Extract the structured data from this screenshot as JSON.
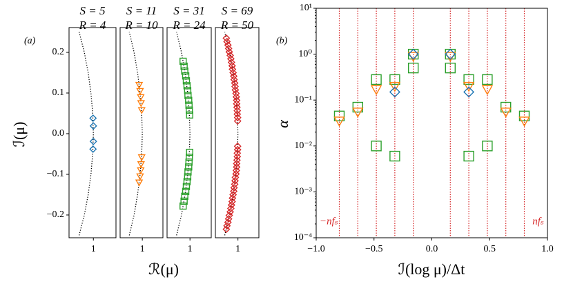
{
  "chart_data": [
    {
      "type": "scatter",
      "label": "(a)",
      "ylabel": "ℐ(μ)",
      "xlabel": "ℛ(μ)",
      "xlim": [
        0.93,
        1.065
      ],
      "xticks": [
        1
      ],
      "ylim": [
        -0.256,
        0.261
      ],
      "yticks": [
        {
          "value": -0.2,
          "label": "−0.2"
        },
        {
          "value": -0.1,
          "label": "−0.1"
        },
        {
          "value": 0,
          "label": "0.0"
        },
        {
          "value": 0.1,
          "label": "0.1"
        },
        {
          "value": 0.2,
          "label": "0.2"
        }
      ],
      "curve": {
        "color": "#000000",
        "x": [
          0.959,
          0.974,
          0.985,
          0.993,
          0.998,
          1,
          0.998,
          0.993,
          0.985,
          0.974,
          0.959
        ],
        "y": [
          -0.25,
          -0.2,
          -0.15,
          -0.1,
          -0.05,
          0,
          0.05,
          0.1,
          0.15,
          0.2,
          0.25
        ]
      },
      "subplots": [
        {
          "title": "S = 5",
          "subtitle": "R = 4",
          "color": "#1f77b4",
          "marker": "diamond",
          "x": [
            0.999,
            1,
            1,
            0.999
          ],
          "y": [
            0.038,
            0.019,
            -0.019,
            -0.038
          ]
        },
        {
          "title": "S = 11",
          "subtitle": "R = 10",
          "color": "#ff7f0e",
          "marker": "triangle",
          "x": [
            0.99,
            0.993,
            0.995,
            0.996,
            0.998,
            0.998,
            0.996,
            0.995,
            0.993,
            0.99
          ],
          "y": [
            0.12,
            0.105,
            0.09,
            0.075,
            0.058,
            -0.058,
            -0.075,
            -0.09,
            -0.105,
            -0.12
          ]
        },
        {
          "title": "S = 31",
          "subtitle": "R = 24",
          "color": "#2ca02c",
          "marker": "square",
          "x": [
            0.979,
            0.982,
            0.984,
            0.987,
            0.989,
            0.991,
            0.993,
            0.994,
            0.996,
            0.997,
            0.998,
            0.999,
            0.999,
            0.998,
            0.997,
            0.996,
            0.994,
            0.993,
            0.991,
            0.989,
            0.987,
            0.984,
            0.982,
            0.979
          ],
          "y": [
            0.178,
            0.166,
            0.154,
            0.142,
            0.13,
            0.118,
            0.106,
            0.094,
            0.082,
            0.07,
            0.058,
            0.046,
            -0.046,
            -0.058,
            -0.07,
            -0.082,
            -0.094,
            -0.106,
            -0.118,
            -0.13,
            -0.142,
            -0.154,
            -0.166,
            -0.178
          ]
        },
        {
          "title": "S = 69",
          "subtitle": "R = 50",
          "color": "#d62728",
          "marker": "diamond",
          "x": [
            0.964,
            0.966,
            0.969,
            0.971,
            0.973,
            0.976,
            0.978,
            0.98,
            0.982,
            0.983,
            0.985,
            0.987,
            0.988,
            0.99,
            0.991,
            0.992,
            0.994,
            0.995,
            0.996,
            0.996,
            0.997,
            0.998,
            0.998,
            0.999,
            0.999,
            0.999,
            0.999,
            0.998,
            0.998,
            0.997,
            0.996,
            0.996,
            0.995,
            0.994,
            0.992,
            0.991,
            0.99,
            0.988,
            0.987,
            0.985,
            0.983,
            0.982,
            0.98,
            0.978,
            0.976,
            0.973,
            0.971,
            0.969,
            0.966,
            0.964
          ],
          "y": [
            0.235,
            0.2265,
            0.218,
            0.2095,
            0.201,
            0.1925,
            0.184,
            0.1755,
            0.167,
            0.1585,
            0.15,
            0.1415,
            0.133,
            0.1245,
            0.116,
            0.1075,
            0.099,
            0.0905,
            0.082,
            0.0735,
            0.065,
            0.0565,
            0.048,
            0.0395,
            0.031,
            -0.031,
            -0.0395,
            -0.048,
            -0.0565,
            -0.065,
            -0.0735,
            -0.082,
            -0.0905,
            -0.099,
            -0.1075,
            -0.116,
            -0.1245,
            -0.133,
            -0.1415,
            -0.15,
            -0.1585,
            -0.167,
            -0.1755,
            -0.184,
            -0.1925,
            -0.201,
            -0.2095,
            -0.218,
            -0.2265,
            -0.235
          ]
        }
      ]
    },
    {
      "type": "scatter",
      "label": "(b)",
      "ylabel": "α",
      "xlabel": "ℐ(log μ)/Δt",
      "log_y": true,
      "xlim": [
        -1,
        1
      ],
      "xticks": [
        {
          "value": -1,
          "label": "−1.0"
        },
        {
          "value": -0.5,
          "label": "−0.5"
        },
        {
          "value": 0,
          "label": "0.0"
        },
        {
          "value": 0.5,
          "label": "0.5"
        },
        {
          "value": 1,
          "label": "1.0"
        }
      ],
      "ylim": [
        0.0001,
        10
      ],
      "yticks": [
        {
          "value": 0.0001,
          "label": "10⁻⁴"
        },
        {
          "value": 0.001,
          "label": "10⁻³"
        },
        {
          "value": 0.01,
          "label": "10⁻²"
        },
        {
          "value": 0.1,
          "label": "10⁻¹"
        },
        {
          "value": 1,
          "label": "10⁰"
        },
        {
          "value": 10,
          "label": "10¹"
        }
      ],
      "vlines": {
        "color": "#d62728",
        "x": [
          -0.8,
          -0.64,
          -0.48,
          -0.32,
          -0.16,
          0.16,
          0.32,
          0.48,
          0.64,
          0.8
        ]
      },
      "annotations": [
        "−nfₛ",
        "nfₛ"
      ],
      "series": [
        {
          "color": "#2ca02c",
          "marker": "square",
          "x": [
            -0.8,
            -0.64,
            -0.48,
            -0.48,
            -0.32,
            -0.32,
            -0.16,
            -0.16,
            0.16,
            0.16,
            0.32,
            0.32,
            0.48,
            0.48,
            0.64,
            0.8
          ],
          "y": [
            0.045,
            0.07,
            0.28,
            0.01,
            0.28,
            0.006,
            0.5,
            1.0,
            0.5,
            1.0,
            0.28,
            0.006,
            0.28,
            0.01,
            0.07,
            0.045
          ]
        },
        {
          "color": "#ff7f0e",
          "marker": "triangle",
          "x": [
            -0.8,
            -0.64,
            -0.48,
            -0.32,
            -0.16,
            0.16,
            0.32,
            0.48,
            0.64,
            0.8
          ],
          "y": [
            0.035,
            0.055,
            0.17,
            0.2,
            0.9,
            0.9,
            0.2,
            0.17,
            0.055,
            0.035
          ]
        },
        {
          "color": "#1f77b4",
          "marker": "diamond",
          "x": [
            -0.32,
            -0.16,
            0.16,
            0.32
          ],
          "y": [
            0.15,
            1.0,
            1.0,
            0.15
          ]
        }
      ]
    }
  ]
}
